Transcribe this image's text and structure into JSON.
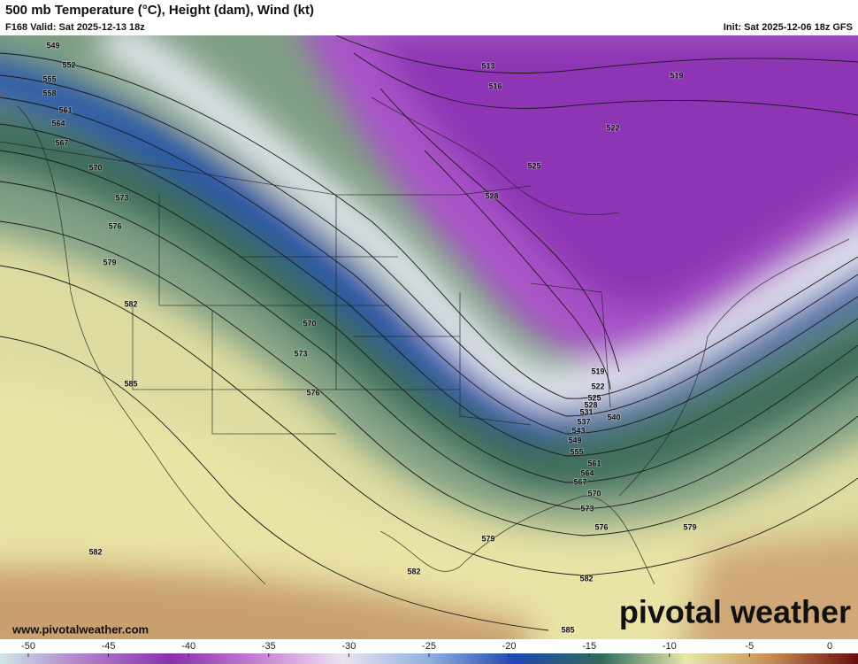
{
  "header": {
    "title": "500 mb Temperature (°C), Height (dam), Wind (kt)",
    "valid": "F168 Valid: Sat 2025-12-13 18z",
    "init": "Init: Sat 2025-12-06 18z GFS"
  },
  "contour_labels": [
    549,
    552,
    555,
    558,
    561,
    564,
    567,
    570,
    573,
    576,
    579,
    582,
    585,
    582,
    570,
    573,
    576,
    513,
    516,
    519,
    522,
    525,
    528,
    519,
    522,
    525,
    528,
    531,
    540,
    537,
    543,
    549,
    555,
    561,
    564,
    567,
    570,
    573,
    576,
    579,
    579,
    582,
    582,
    585
  ],
  "watermark": "pivotal weather",
  "website": "www.pivotalweather.com",
  "colorbar": {
    "ticks": [
      -50,
      -45,
      -40,
      -35,
      -30,
      -25,
      -20,
      -15,
      -10,
      -5,
      0
    ]
  }
}
